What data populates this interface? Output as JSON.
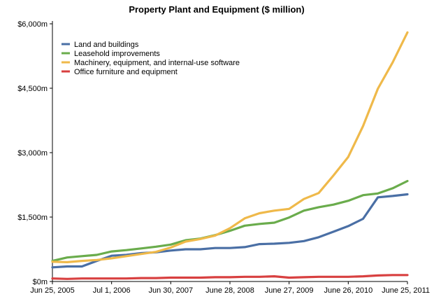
{
  "chart_data": {
    "type": "line",
    "title": "Property Plant and Equipment ($ million)",
    "xlabel": "",
    "ylabel": "",
    "ylim": [
      0,
      6000
    ],
    "yticks": [
      0,
      1500,
      3000,
      4500,
      6000
    ],
    "ytick_labels": [
      "$0m",
      "$1,500m",
      "$3,000m",
      "$4,500m",
      "$6,000m"
    ],
    "xtick_labels": [
      "Jun 25, 2005",
      "Jul 1, 2006",
      "Jun 30, 2007",
      "June 28, 2008",
      "June 27, 2009",
      "June 26, 2010",
      "June 25, 2011"
    ],
    "xtick_positions": [
      0,
      4,
      8,
      12,
      16,
      20,
      24
    ],
    "x": [
      0,
      1,
      2,
      3,
      4,
      5,
      6,
      7,
      8,
      9,
      10,
      11,
      12,
      13,
      14,
      15,
      16,
      17,
      18,
      19,
      20,
      21,
      22,
      23,
      24
    ],
    "grid": false,
    "legend_position": "top-left",
    "series": [
      {
        "name": "Land and buildings",
        "color": "#4a6fa5",
        "values": [
          330,
          350,
          350,
          480,
          600,
          620,
          660,
          680,
          720,
          750,
          750,
          780,
          780,
          800,
          870,
          880,
          900,
          940,
          1030,
          1160,
          1290,
          1460,
          1960,
          1990,
          2030
        ]
      },
      {
        "name": "Leasehold improvements",
        "color": "#6aac4c",
        "values": [
          480,
          560,
          590,
          620,
          700,
          730,
          770,
          810,
          860,
          960,
          1000,
          1080,
          1180,
          1300,
          1340,
          1370,
          1490,
          1650,
          1730,
          1790,
          1880,
          2010,
          2050,
          2170,
          2340
        ]
      },
      {
        "name": "Machinery, equipment, and internal-use software",
        "color": "#efb94a",
        "values": [
          460,
          450,
          480,
          500,
          540,
          590,
          640,
          690,
          790,
          930,
          990,
          1070,
          1240,
          1470,
          1590,
          1650,
          1690,
          1920,
          2060,
          2470,
          2900,
          3620,
          4490,
          5100,
          5800
        ]
      },
      {
        "name": "Office furniture and equipment",
        "color": "#d84040",
        "values": [
          70,
          60,
          70,
          70,
          70,
          70,
          80,
          80,
          90,
          90,
          90,
          100,
          100,
          110,
          110,
          120,
          90,
          100,
          110,
          110,
          110,
          120,
          140,
          150,
          150
        ]
      }
    ]
  }
}
